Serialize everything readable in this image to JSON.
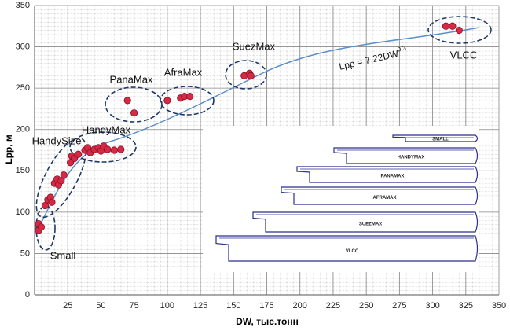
{
  "chart_data": {
    "type": "scatter",
    "x": [
      3,
      3,
      5,
      8,
      10,
      12,
      13,
      15,
      17,
      18,
      20,
      22,
      27,
      28,
      30,
      33,
      38,
      40,
      42,
      45,
      48,
      50,
      52,
      55,
      60,
      65,
      70,
      75,
      100,
      110,
      113,
      117,
      158,
      162,
      163,
      310,
      315,
      320
    ],
    "values": [
      78,
      86,
      82,
      108,
      115,
      118,
      112,
      135,
      140,
      133,
      138,
      145,
      160,
      168,
      165,
      170,
      175,
      178,
      172,
      176,
      178,
      174,
      180,
      176,
      175,
      176,
      235,
      220,
      235,
      238,
      240,
      240,
      265,
      268,
      265,
      325,
      325,
      320
    ],
    "color": "#d42a45",
    "xlim": [
      0,
      350
    ],
    "ylim": [
      0,
      350
    ],
    "xticks": [
      25,
      50,
      75,
      100,
      125,
      150,
      175,
      200,
      225,
      250,
      275,
      300,
      325,
      350
    ],
    "yticks": [
      0,
      50,
      100,
      150,
      200,
      250,
      300,
      350
    ],
    "grid": true,
    "x_label": "DW, тыс.тонн",
    "y_label": "Lpp, м",
    "annotations": [
      {
        "text": "Small"
      },
      {
        "text": "HandySize"
      },
      {
        "text": "HandyMax"
      },
      {
        "text": "PanaMax"
      },
      {
        "text": "AfraMax"
      },
      {
        "text": "SuezMax"
      },
      {
        "text": "VLCC"
      }
    ],
    "formula": {
      "text": "Lpp = 7.22DW",
      "superscript": "0.3"
    },
    "inset_labels": [
      "SMALL",
      "HANDYMAX",
      "PANAMAX",
      "AFRAMAX",
      "SUEZMAX",
      "VLCC"
    ]
  }
}
